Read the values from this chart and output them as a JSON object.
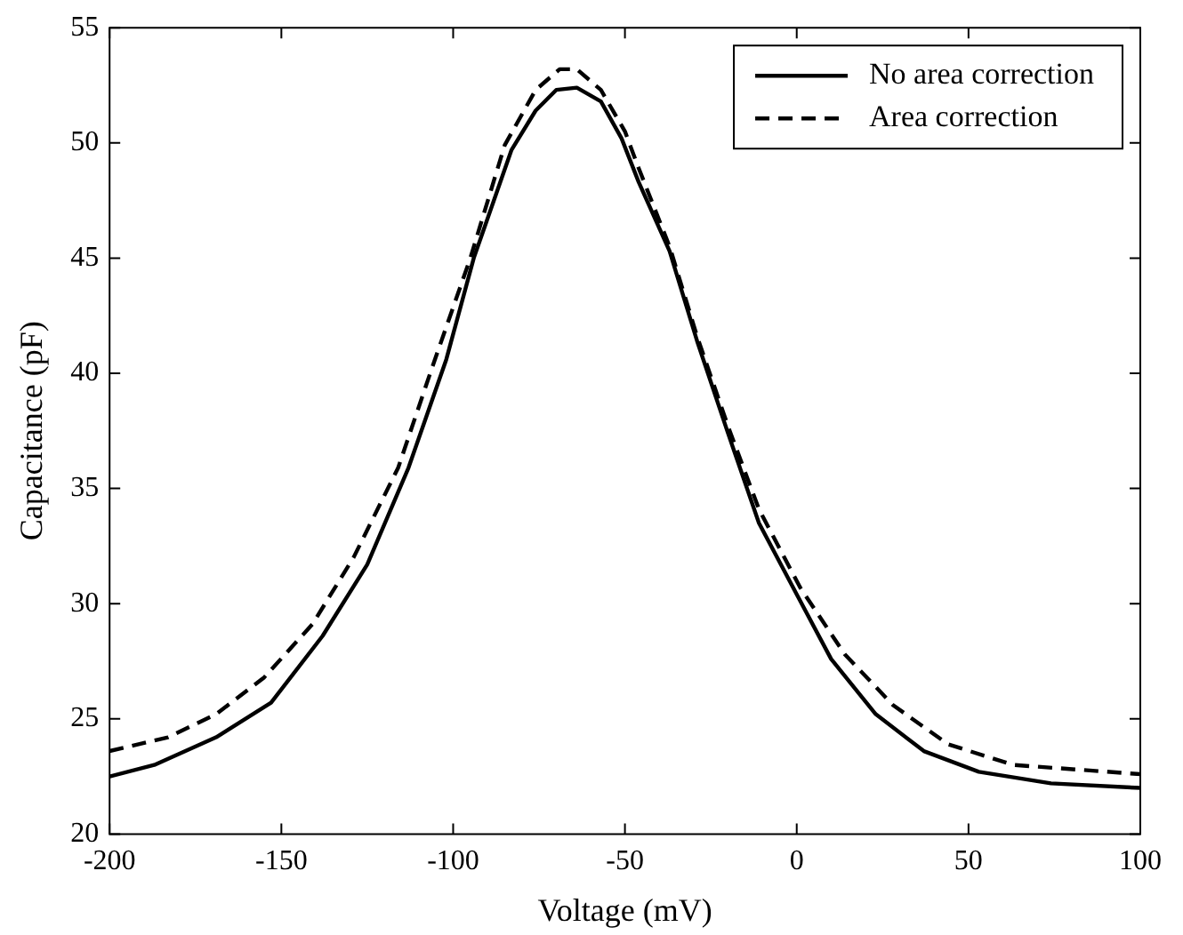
{
  "chart_data": {
    "type": "line",
    "xlabel": "Voltage (mV)",
    "ylabel": "Capacitance (pF)",
    "xlim": [
      -200,
      100
    ],
    "xticks": [
      -200,
      -150,
      -100,
      -50,
      0,
      50,
      100
    ],
    "ylim": [
      20,
      55
    ],
    "yticks": [
      20,
      25,
      30,
      35,
      40,
      45,
      50,
      55
    ],
    "grid": false,
    "legend": "top right",
    "marker": "none",
    "series": [
      {
        "name": "No area correction",
        "color": "#000000",
        "line_style": "solid",
        "x": [
          -200,
          -187,
          -169,
          -153,
          -138,
          -125,
          -113,
          -102,
          -94,
          -83,
          -76,
          -70,
          -64,
          -57,
          -51,
          -46,
          -37,
          -29,
          -20,
          -11,
          0,
          10,
          23,
          37,
          53,
          74,
          100
        ],
        "values": [
          22.5,
          23.0,
          24.2,
          25.7,
          28.6,
          31.7,
          35.9,
          40.6,
          45.0,
          49.7,
          51.4,
          52.3,
          52.4,
          51.8,
          50.2,
          48.3,
          45.3,
          41.4,
          37.4,
          33.5,
          30.4,
          27.6,
          25.2,
          23.6,
          22.7,
          22.2,
          22.0
        ]
      },
      {
        "name": "Area correction",
        "color": "#000000",
        "line_style": "dashed",
        "x": [
          -200,
          -183,
          -169,
          -155,
          -141,
          -129,
          -116,
          -106,
          -95,
          -85,
          -76,
          -69,
          -64,
          -57,
          -50,
          -46,
          -37,
          -29,
          -20,
          -11,
          1,
          14,
          28,
          44,
          63,
          100
        ],
        "values": [
          23.6,
          24.2,
          25.2,
          26.8,
          29.1,
          32.0,
          35.9,
          40.3,
          45.0,
          49.9,
          52.3,
          53.2,
          53.2,
          52.3,
          50.5,
          48.9,
          45.5,
          41.6,
          37.7,
          34.1,
          30.7,
          27.8,
          25.6,
          23.9,
          23.0,
          22.6
        ]
      }
    ]
  }
}
